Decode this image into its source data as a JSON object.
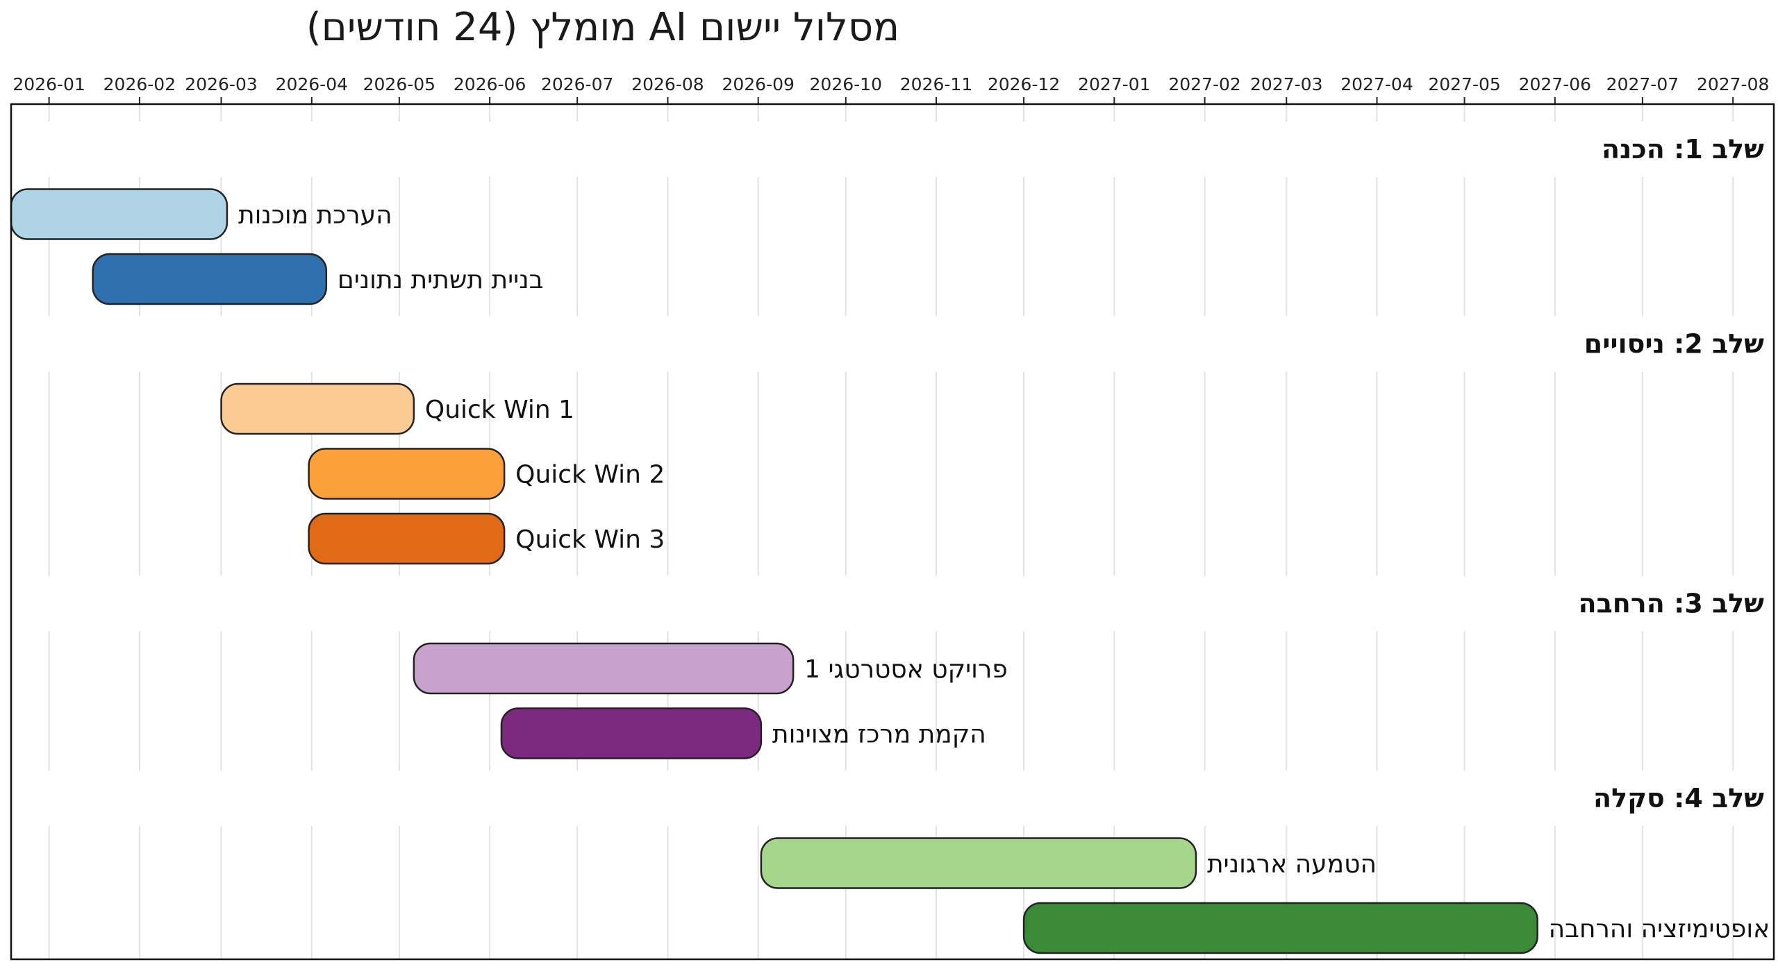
{
  "chart_data": {
    "type": "gantt",
    "title": "מסלול יישום AI מומלץ (24 חודשים)",
    "x_ticks": [
      "2026-01",
      "2026-02",
      "2026-03",
      "2026-04",
      "2026-05",
      "2026-06",
      "2026-07",
      "2026-08",
      "2026-09",
      "2026-10",
      "2026-11",
      "2026-12",
      "2027-01",
      "2027-02",
      "2027-03",
      "2027-04",
      "2027-05",
      "2027-06",
      "2027-07",
      "2027-08"
    ],
    "xlim": [
      "2025-12-19",
      "2027-08-15"
    ],
    "grid": true,
    "phases": [
      {
        "label": "שלב 1: הכנה",
        "tasks": [
          {
            "label": "הערכת מוכנות",
            "start": "2025-12-19",
            "end": "2026-03-03",
            "color": "#aed4e6"
          },
          {
            "label": "בניית תשתית נתונים",
            "start": "2026-01-16",
            "end": "2026-04-06",
            "color": "#2e70b0"
          }
        ]
      },
      {
        "label": "שלב 2: ניסויים",
        "tasks": [
          {
            "label": "Quick Win 1",
            "start": "2026-03-01",
            "end": "2026-05-06",
            "color": "#fcca94"
          },
          {
            "label": "Quick Win 2",
            "start": "2026-03-31",
            "end": "2026-06-06",
            "color": "#fca03c"
          },
          {
            "label": "Quick Win 3",
            "start": "2026-03-31",
            "end": "2026-06-06",
            "color": "#e06a16"
          }
        ]
      },
      {
        "label": "שלב 3: הרחבה",
        "tasks": [
          {
            "label": "פרויקט אסטרטגי 1",
            "start": "2026-05-06",
            "end": "2026-09-13",
            "color": "#c8a2cd"
          },
          {
            "label": "הקמת מרכז מצוינות",
            "start": "2026-06-05",
            "end": "2026-09-02",
            "color": "#7b2a80"
          }
        ]
      },
      {
        "label": "שלב 4: סקלה",
        "tasks": [
          {
            "label": "הטמעה ארגונית",
            "start": "2026-09-02",
            "end": "2027-01-29",
            "color": "#a6d68c"
          },
          {
            "label": "אופטימיזציה והרחבה",
            "start": "2026-12-01",
            "end": "2027-05-26",
            "color": "#3a8a38"
          }
        ]
      }
    ]
  }
}
